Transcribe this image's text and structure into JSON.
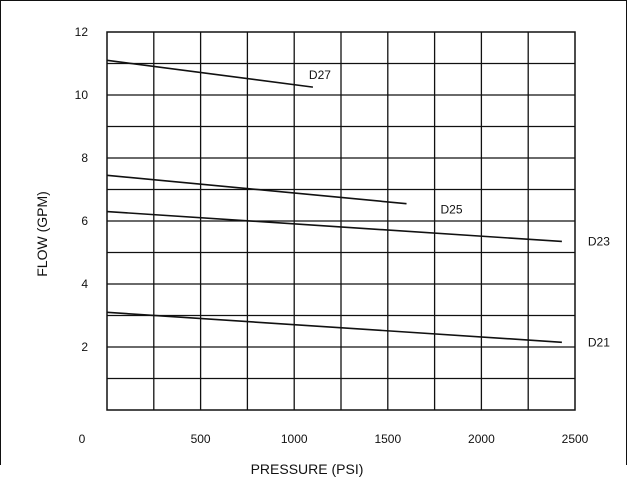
{
  "chart_data": {
    "type": "line",
    "title": "",
    "xlabel": "PRESSURE (PSI)",
    "ylabel": "FLOW (GPM)",
    "xlim": [
      0,
      2500
    ],
    "ylim": [
      0,
      12
    ],
    "x_ticks": [
      "0",
      "500",
      "1000",
      "1500",
      "2000",
      "2500"
    ],
    "y_ticks": [
      "2",
      "4",
      "6",
      "8",
      "10",
      "12"
    ],
    "grid": true,
    "legend": "inline labels next to lines",
    "series": [
      {
        "name": "D27",
        "x": [
          0,
          1100
        ],
        "y": [
          11.1,
          10.25
        ]
      },
      {
        "name": "D25",
        "x": [
          0,
          1600
        ],
        "y": [
          7.45,
          6.55
        ]
      },
      {
        "name": "D23",
        "x": [
          0,
          2430
        ],
        "y": [
          6.3,
          5.35
        ]
      },
      {
        "name": "D21",
        "x": [
          0,
          2430
        ],
        "y": [
          3.1,
          2.15
        ]
      }
    ]
  }
}
